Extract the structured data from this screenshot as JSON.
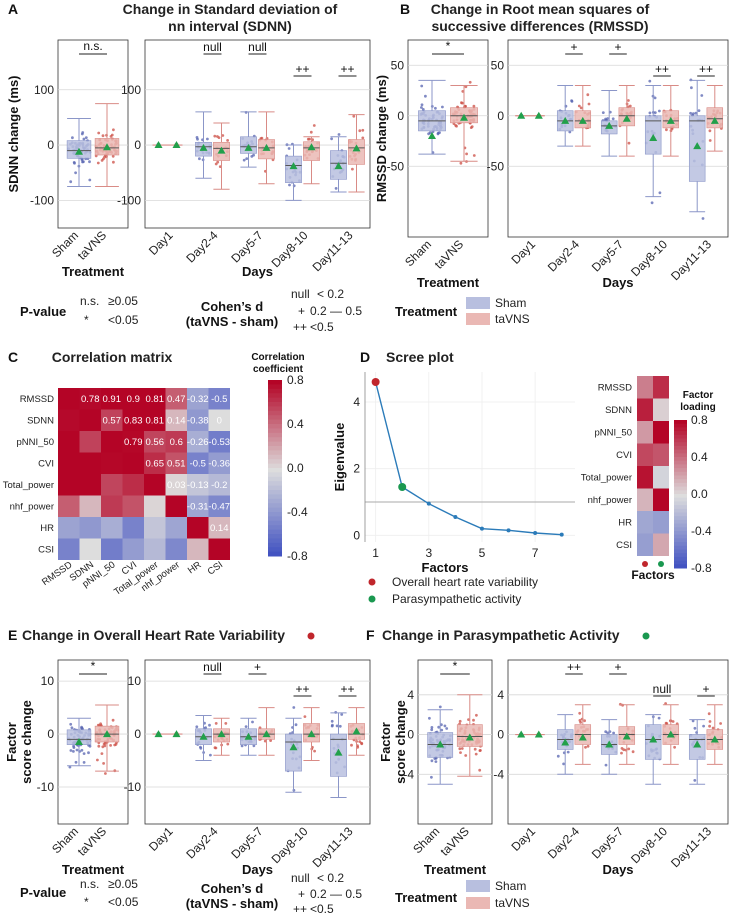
{
  "colors": {
    "sham": "#8b96c8",
    "sham_fill": "#b8bfdf",
    "sham_dot": "#5563b0",
    "tavns": "#d98b86",
    "tavns_fill": "#eab8b4",
    "tavns_dot": "#cc4d44",
    "mean": "#22a04b",
    "red": "#c0262c",
    "green": "#1a9850",
    "line": "#2b7bb9",
    "grid": "#d8d8d8"
  },
  "chart_data": [
    {
      "id": "A",
      "letter": "A",
      "title": [
        "Change in Standard deviation of",
        "nn interval (SDNN)"
      ],
      "type": "box",
      "ylabel": "SDNN change (ms)",
      "ylim": [
        -150,
        190
      ],
      "yticks": [
        -100,
        0,
        100
      ],
      "treatment": {
        "xlabel": "Treatment",
        "groups": [
          {
            "name": "Sham",
            "q1": -24,
            "median": -10,
            "q3": 8,
            "wlo": -75,
            "whi": 48,
            "mean": -12
          },
          {
            "name": "taVNS",
            "q1": -18,
            "median": -5,
            "q3": 12,
            "wlo": -75,
            "whi": 75,
            "mean": -4
          }
        ],
        "sig": "n.s."
      },
      "days": {
        "xlabel": "Days",
        "categories": [
          "Day1",
          "Day2-4",
          "Day5-7",
          "Day8-10",
          "Day11-13"
        ],
        "sham": [
          {
            "q1": 0,
            "median": 0,
            "q3": 0,
            "wlo": 0,
            "whi": 0,
            "mean": 0
          },
          {
            "q1": -20,
            "median": -3,
            "q3": 5,
            "wlo": -60,
            "whi": 60,
            "mean": -5
          },
          {
            "q1": -15,
            "median": -3,
            "q3": 15,
            "wlo": -40,
            "whi": 60,
            "mean": -5
          },
          {
            "q1": -68,
            "median": -37,
            "q3": -20,
            "wlo": -100,
            "whi": 0,
            "mean": -38
          },
          {
            "q1": -62,
            "median": -33,
            "q3": -10,
            "wlo": -85,
            "whi": 15,
            "mean": -38
          }
        ],
        "tavns": [
          {
            "q1": 0,
            "median": 0,
            "q3": 0,
            "wlo": 0,
            "whi": 0,
            "mean": 0
          },
          {
            "q1": -28,
            "median": -6,
            "q3": 5,
            "wlo": -80,
            "whi": 40,
            "mean": -10
          },
          {
            "q1": -25,
            "median": -5,
            "q3": 10,
            "wlo": -70,
            "whi": 60,
            "mean": -5
          },
          {
            "q1": -28,
            "median": -5,
            "q3": 6,
            "wlo": -70,
            "whi": 15,
            "mean": -4
          },
          {
            "q1": -35,
            "median": -5,
            "q3": 10,
            "wlo": -85,
            "whi": 55,
            "mean": -6
          }
        ],
        "sig": [
          "",
          "null",
          "null",
          "++",
          "++"
        ]
      }
    },
    {
      "id": "B",
      "letter": "B",
      "title": [
        "Change in Root mean squares of",
        "successive differences (RMSSD)"
      ],
      "type": "box",
      "ylabel": "RMSSD change (ms)",
      "ylim": [
        -120,
        75
      ],
      "yticks": [
        -50,
        0,
        50
      ],
      "treatment": {
        "xlabel": "Treatment",
        "groups": [
          {
            "name": "Sham",
            "q1": -15,
            "median": -5,
            "q3": 5,
            "wlo": -38,
            "whi": 35,
            "mean": -20
          },
          {
            "name": "taVNS",
            "q1": -7,
            "median": 0,
            "q3": 8,
            "wlo": -45,
            "whi": 30,
            "mean": -2
          }
        ],
        "sig": "*"
      },
      "days": {
        "xlabel": "Days",
        "categories": [
          "Day1",
          "Day2-4",
          "Day5-7",
          "Day8-10",
          "Day11-13"
        ],
        "sham": [
          {
            "q1": 0,
            "median": 0,
            "q3": 0,
            "wlo": 0,
            "whi": 0,
            "mean": 0
          },
          {
            "q1": -15,
            "median": -5,
            "q3": 5,
            "wlo": -30,
            "whi": 30,
            "mean": -5
          },
          {
            "q1": -18,
            "median": -10,
            "q3": -5,
            "wlo": -40,
            "whi": 25,
            "mean": -10
          },
          {
            "q1": -38,
            "median": -5,
            "q3": 0,
            "wlo": -80,
            "whi": 30,
            "mean": -22
          },
          {
            "q1": -65,
            "median": -5,
            "q3": 0,
            "wlo": -95,
            "whi": 35,
            "mean": -30
          }
        ],
        "tavns": [
          {
            "q1": 0,
            "median": 0,
            "q3": 0,
            "wlo": 0,
            "whi": 0,
            "mean": 0
          },
          {
            "q1": -12,
            "median": -5,
            "q3": 5,
            "wlo": -30,
            "whi": 30,
            "mean": -5
          },
          {
            "q1": -10,
            "median": 0,
            "q3": 8,
            "wlo": -40,
            "whi": 30,
            "mean": -3
          },
          {
            "q1": -12,
            "median": -5,
            "q3": 5,
            "wlo": -40,
            "whi": 30,
            "mean": -5
          },
          {
            "q1": -12,
            "median": -3,
            "q3": 8,
            "wlo": -35,
            "whi": 30,
            "mean": -5
          }
        ],
        "sig": [
          "",
          "+",
          "+",
          "++",
          "++"
        ]
      }
    },
    {
      "id": "C",
      "letter": "C",
      "type": "heatmap",
      "title": "Correlation matrix",
      "labels": [
        "RMSSD",
        "SDNN",
        "pNNI_50",
        "CVI",
        "Total_power",
        "nhf_power",
        "HR",
        "CSI"
      ],
      "matrix": [
        [
          1,
          0.78,
          0.91,
          0.9,
          0.81,
          0.47,
          -0.32,
          -0.5
        ],
        [
          0.78,
          1,
          0.57,
          0.83,
          0.81,
          0.14,
          -0.38,
          0.0
        ],
        [
          0.91,
          0.57,
          1,
          0.79,
          0.56,
          0.6,
          -0.26,
          -0.53
        ],
        [
          0.9,
          0.83,
          0.79,
          1,
          0.65,
          0.51,
          -0.5,
          -0.36
        ],
        [
          0.81,
          0.81,
          0.56,
          0.65,
          1,
          0.03,
          -0.13,
          -0.2
        ],
        [
          0.47,
          0.14,
          0.6,
          0.51,
          0.03,
          1,
          -0.31,
          -0.47
        ],
        [
          -0.32,
          -0.38,
          -0.26,
          -0.5,
          -0.13,
          -0.31,
          1,
          0.14
        ],
        [
          -0.5,
          0.0,
          -0.53,
          -0.36,
          -0.2,
          -0.47,
          0.14,
          1
        ]
      ],
      "colorbar": {
        "title": [
          "Correlation",
          "coefficient"
        ],
        "ticks": [
          "0.8",
          "0.4",
          "0.0",
          "-0.4",
          "-0.8"
        ],
        "range": [
          -0.8,
          0.8
        ]
      }
    },
    {
      "id": "D",
      "letter": "D",
      "type": "line",
      "title": "Scree plot",
      "xlabel": "Factors",
      "ylabel": "Eigenvalue",
      "x": [
        1,
        2,
        3,
        4,
        5,
        6,
        7,
        8
      ],
      "y": [
        4.6,
        1.45,
        0.95,
        0.55,
        0.2,
        0.15,
        0.07,
        0.02
      ],
      "xlim": [
        0.6,
        8.5
      ],
      "ylim": [
        -0.2,
        4.9
      ],
      "xticks": [
        1,
        3,
        5,
        7
      ],
      "yticks": [
        0,
        2,
        4
      ],
      "hline": 1,
      "legend": [
        {
          "label": "Overall heart rate variability",
          "color": "red"
        },
        {
          "label": "Parasympathetic activity",
          "color": "green"
        }
      ],
      "loadings": {
        "rows": [
          "RMSSD",
          "SDNN",
          "pNNI_50",
          "CVI",
          "Total_power",
          "nhf_power",
          "HR",
          "CSI"
        ],
        "values": [
          [
            0.35,
            0.65
          ],
          [
            0.7,
            0.05
          ],
          [
            0.25,
            0.8
          ],
          [
            0.55,
            0.5
          ],
          [
            0.75,
            -0.05
          ],
          [
            0.15,
            0.8
          ],
          [
            -0.3,
            -0.35
          ],
          [
            -0.35,
            0.2
          ]
        ],
        "title": [
          "Factor",
          "loading"
        ],
        "ticks": [
          "0.8",
          "0.4",
          "0.0",
          "-0.4",
          "-0.8"
        ],
        "xlabel": "Factors"
      }
    },
    {
      "id": "E",
      "letter": "E",
      "title": [
        "Change in Overall Heart Rate Variability"
      ],
      "dot": "red",
      "type": "box",
      "ylabel": [
        "Factor",
        "score change"
      ],
      "ylim": [
        -17,
        14
      ],
      "yticks": [
        -10,
        0,
        10
      ],
      "treatment": {
        "xlabel": "Treatment",
        "groups": [
          {
            "name": "Sham",
            "q1": -2,
            "median": -1,
            "q3": 0.8,
            "wlo": -6,
            "whi": 3,
            "mean": -1.5
          },
          {
            "name": "taVNS",
            "q1": -1.5,
            "median": 0,
            "q3": 1.5,
            "wlo": -7,
            "whi": 5.5,
            "mean": 0
          }
        ],
        "sig": "*"
      },
      "days": {
        "xlabel": "Days",
        "categories": [
          "Day1",
          "Day2-4",
          "Day5-7",
          "Day8-10",
          "Day11-13"
        ],
        "sham": [
          {
            "q1": 0,
            "median": 0,
            "q3": 0,
            "wlo": 0,
            "whi": 0,
            "mean": 0
          },
          {
            "q1": -2,
            "median": -0.5,
            "q3": 1,
            "wlo": -5,
            "whi": 3.5,
            "mean": -0.5
          },
          {
            "q1": -2,
            "median": -0.5,
            "q3": 1,
            "wlo": -4,
            "whi": 3,
            "mean": -0.5
          },
          {
            "q1": -7,
            "median": -1.5,
            "q3": 0,
            "wlo": -11,
            "whi": 3,
            "mean": -2.5
          },
          {
            "q1": -8,
            "median": -1,
            "q3": 0,
            "wlo": -12,
            "whi": 4,
            "mean": -3.5
          }
        ],
        "tavns": [
          {
            "q1": 0,
            "median": 0,
            "q3": 0,
            "wlo": 0,
            "whi": 0,
            "mean": 0
          },
          {
            "q1": -1.5,
            "median": 0,
            "q3": 1,
            "wlo": -4,
            "whi": 3,
            "mean": 0
          },
          {
            "q1": -1,
            "median": 0,
            "q3": 1,
            "wlo": -4,
            "whi": 5,
            "mean": 0
          },
          {
            "q1": -1.5,
            "median": 0,
            "q3": 2,
            "wlo": -5,
            "whi": 5,
            "mean": 0
          },
          {
            "q1": -1,
            "median": 0,
            "q3": 2,
            "wlo": -4,
            "whi": 5,
            "mean": 0.5
          }
        ],
        "sig": [
          "",
          "null",
          "+",
          "++",
          "++"
        ]
      }
    },
    {
      "id": "F",
      "letter": "F",
      "title": [
        "Change in Parasympathetic Activity"
      ],
      "dot": "green",
      "type": "box",
      "ylabel": [
        "Factor",
        "score change"
      ],
      "ylim": [
        -9,
        7.5
      ],
      "yticks": [
        -4,
        0,
        4
      ],
      "treatment": {
        "xlabel": "Treatment",
        "groups": [
          {
            "name": "Sham",
            "q1": -2.3,
            "median": -1,
            "q3": 0.2,
            "wlo": -5,
            "whi": 2.5,
            "mean": -1
          },
          {
            "name": "taVNS",
            "q1": -1.2,
            "median": -0.2,
            "q3": 1,
            "wlo": -4.2,
            "whi": 4,
            "mean": -0.3
          }
        ],
        "sig": "*"
      },
      "days": {
        "xlabel": "Days",
        "categories": [
          "Day1",
          "Day2-4",
          "Day5-7",
          "Day8-10",
          "Day11-13"
        ],
        "sham": [
          {
            "q1": 0,
            "median": 0,
            "q3": 0,
            "wlo": 0,
            "whi": 0,
            "mean": 0
          },
          {
            "q1": -1.5,
            "median": -0.5,
            "q3": 0.5,
            "wlo": -4,
            "whi": 2,
            "mean": -0.8
          },
          {
            "q1": -2,
            "median": -1,
            "q3": 0,
            "wlo": -4,
            "whi": 1.5,
            "mean": -1
          },
          {
            "q1": -2.5,
            "median": -0.5,
            "q3": 1,
            "wlo": -5,
            "whi": 2,
            "mean": -0.5
          },
          {
            "q1": -2.5,
            "median": -0.5,
            "q3": 0,
            "wlo": -5,
            "whi": 1.5,
            "mean": -1
          }
        ],
        "tavns": [
          {
            "q1": 0,
            "median": 0,
            "q3": 0,
            "wlo": 0,
            "whi": 0,
            "mean": 0
          },
          {
            "q1": -1,
            "median": 0,
            "q3": 1,
            "wlo": -3,
            "whi": 3,
            "mean": -0.3
          },
          {
            "q1": -1,
            "median": 0,
            "q3": 0.8,
            "wlo": -3,
            "whi": 3,
            "mean": -0.2
          },
          {
            "q1": -1,
            "median": 0,
            "q3": 1,
            "wlo": -3,
            "whi": 3,
            "mean": 0
          },
          {
            "q1": -1.5,
            "median": -0.5,
            "q3": 0.5,
            "wlo": -3,
            "whi": 3,
            "mean": -0.5
          }
        ],
        "sig": [
          "",
          "++",
          "+",
          "null",
          "+"
        ]
      }
    }
  ],
  "legend": {
    "pvalue": {
      "title": "P-value",
      "rows": [
        [
          "n.s.",
          "≥0.05"
        ],
        [
          "*",
          "<0.05"
        ]
      ]
    },
    "cohen": {
      "title": [
        "Cohen’s d",
        "(taVNS - sham)"
      ],
      "rows": [
        [
          "null",
          "< 0.2"
        ],
        [
          "+",
          "0.2 — 0.5"
        ],
        [
          "++",
          "<0.5"
        ]
      ]
    },
    "treatment": {
      "title": "Treatment",
      "items": [
        "Sham",
        "taVNS"
      ]
    }
  }
}
